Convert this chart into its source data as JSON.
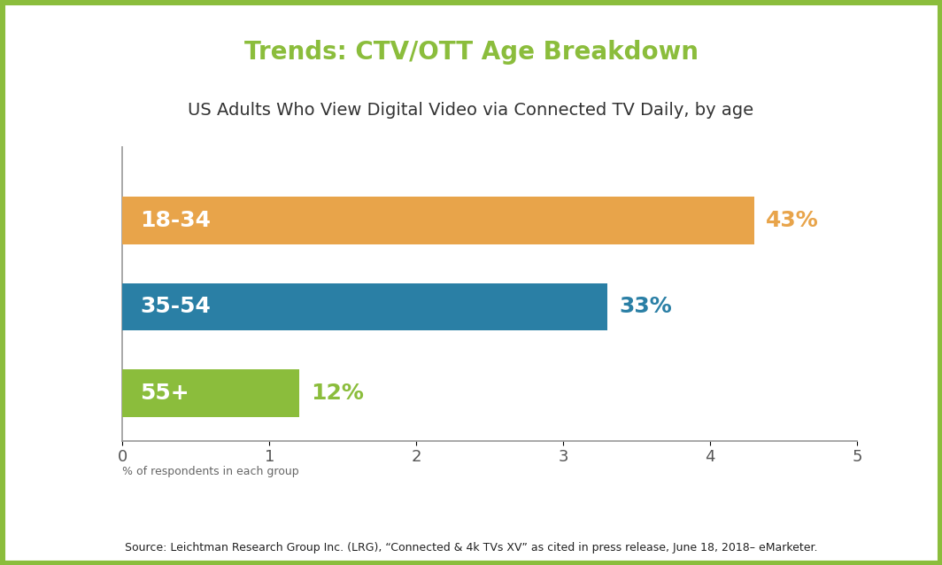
{
  "title": "Trends: CTV/OTT Age Breakdown",
  "subtitle": "US Adults Who View Digital Video via Connected TV Daily, by age",
  "categories": [
    "18-34",
    "35-54",
    "55+"
  ],
  "values": [
    4.3,
    3.3,
    1.2
  ],
  "display_pcts": [
    "43%",
    "33%",
    "12%"
  ],
  "bar_colors": [
    "#E8A44A",
    "#2A7FA5",
    "#8BBD3C"
  ],
  "bar_label_color": "#ffffff",
  "xlim": [
    0,
    5
  ],
  "xticks": [
    0,
    1,
    2,
    3,
    4,
    5
  ],
  "source_text": "Source: Leichtman Research Group Inc. (LRG), “Connected & 4k TVs XV” as cited in press release, June 18, 2018– eMarketer.",
  "footnote": "% of respondents in each group",
  "title_color": "#8BBD3C",
  "subtitle_color": "#333333",
  "background_color": "#ffffff",
  "border_color": "#8BBD3C",
  "border_width": 8,
  "bar_height": 0.55
}
